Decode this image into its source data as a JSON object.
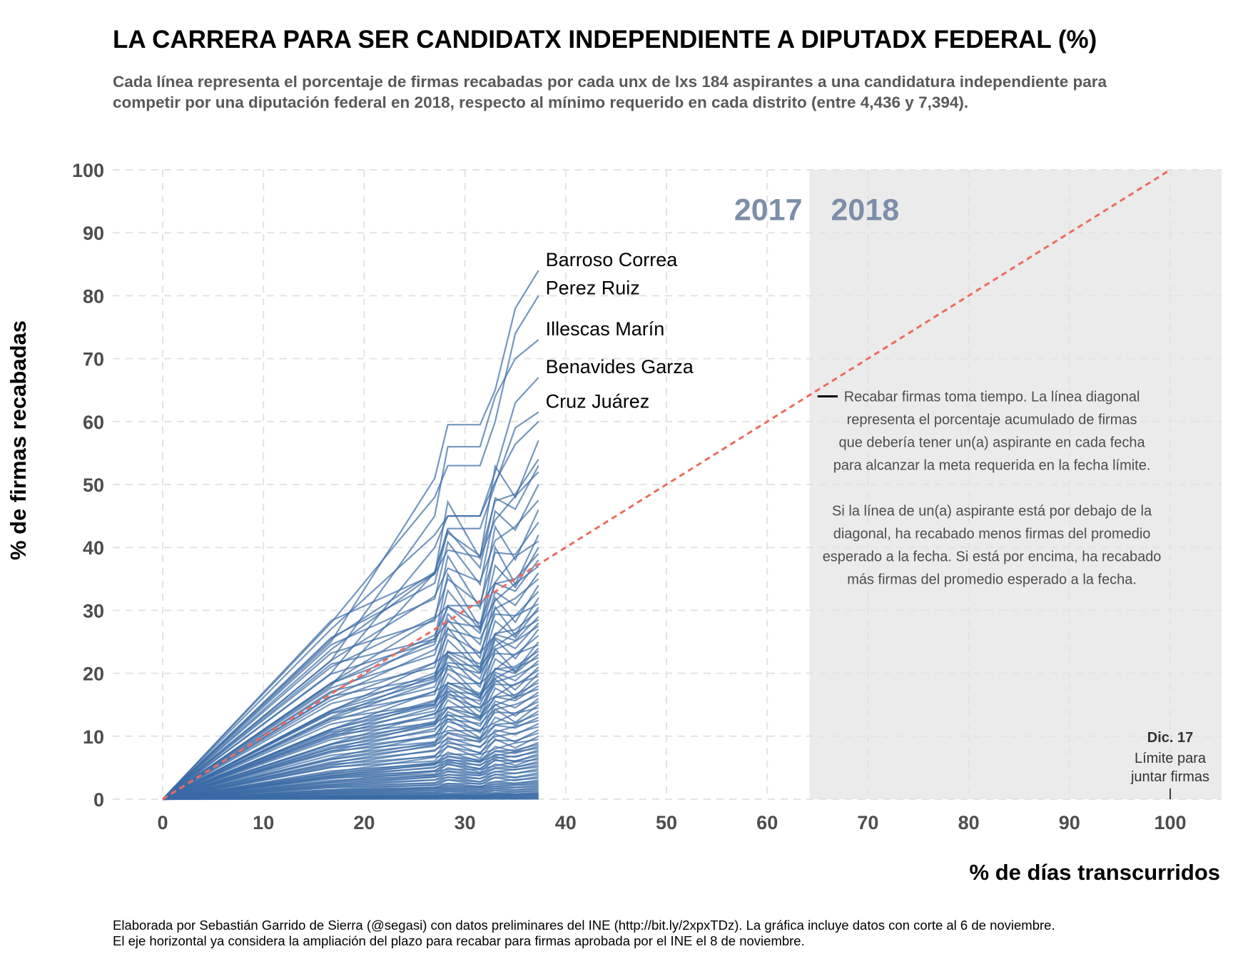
{
  "header": {
    "title": "LA CARRERA PARA SER CANDIDATX INDEPENDIENTE A DIPUTADX FEDERAL (%)",
    "subtitle": "Cada línea representa el porcentaje de firmas recabadas por cada unx de lxs 184 aspirantes a una candidatura independiente para competir por una diputación federal en 2018, respecto al mínimo requerido en cada distrito (entre 4,436 y 7,394)."
  },
  "caption": {
    "line1": "Elaborada por Sebastián Garrido de Sierra (@segasi) con datos preliminares del INE (http://bit.ly/2xpxTDz). La gráfica incluye datos con corte al 6 de noviembre.",
    "line2": "El eje horizontal ya considera la ampliación del plazo para recabar para firmas aprobada por el INE el 8 de noviembre."
  },
  "chart_data": {
    "type": "line",
    "xlabel": "% de días transcurridos",
    "ylabel": "% de firmas recabadas",
    "xlim": [
      0,
      100
    ],
    "ylim": [
      0,
      100
    ],
    "x_ticks": [
      0,
      10,
      20,
      30,
      40,
      50,
      60,
      70,
      80,
      90,
      100
    ],
    "y_ticks": [
      0,
      10,
      20,
      30,
      40,
      50,
      60,
      70,
      80,
      90,
      100
    ],
    "grid": "dashed",
    "year_boundary_x": 64.2,
    "shaded_region_x": [
      64.2,
      100
    ],
    "year_labels": [
      "2017",
      "2018"
    ],
    "colors": {
      "lines": "#3b6ba5",
      "diagonal": "#ef6a5f",
      "shade": "#ebebeb",
      "year_label": "#7d8ea8"
    },
    "reference_line": {
      "x": [
        0,
        100
      ],
      "y": [
        0,
        100
      ],
      "style": "dashed"
    },
    "deadline": {
      "x": 100,
      "label_bold": "Dic. 17",
      "label_lines": [
        "Límite para",
        "juntar firmas"
      ]
    },
    "note": {
      "paragraph1": [
        "Recabar firmas toma tiempo. La línea diagonal",
        "representa el porcentaje acumulado de firmas",
        "que debería tener un(a) aspirante en cada fecha",
        "para alcanzar la meta requerida en la fecha límite."
      ],
      "paragraph2": [
        "Si la línea de un(a) aspirante está por debajo de la",
        "diagonal, ha recabado menos firmas del promedio",
        "esperado a la fecha. Si está por encima, ha recabado",
        "más firmas del promedio esperado a la fecha."
      ]
    },
    "x_points": [
      0,
      16.7,
      27.0,
      28.3,
      31.5,
      33.0,
      35.0,
      37.3
    ],
    "labeled_series": [
      {
        "name": "Barroso Correa",
        "values": [
          0,
          25,
          51,
          59.5,
          59.5,
          65,
          78,
          84
        ]
      },
      {
        "name": "Perez Ruiz",
        "values": [
          0,
          28,
          48,
          53,
          53,
          60,
          74,
          80
        ]
      },
      {
        "name": "Illescas Marín",
        "values": [
          0,
          22,
          45,
          56,
          56,
          64,
          70,
          73
        ]
      },
      {
        "name": "Benavides Garza",
        "values": [
          0,
          20,
          40,
          45,
          45,
          52,
          63,
          67
        ]
      },
      {
        "name": "Cruz Juárez",
        "values": [
          0,
          18,
          36,
          43,
          43,
          50,
          59,
          61.5
        ]
      }
    ],
    "series_count": 184,
    "unlabeled_series_final_values": [
      60,
      57,
      54,
      53,
      52,
      50,
      47.5,
      46,
      44,
      42,
      41,
      40,
      39,
      38,
      37,
      36,
      35,
      34,
      33,
      32,
      31,
      30.5,
      30,
      29,
      28.5,
      28,
      27.5,
      27,
      26,
      25,
      24.5,
      24,
      23.5,
      23,
      22.5,
      22,
      21.5,
      21,
      20.5,
      20,
      19.5,
      19,
      18.5,
      18,
      17.5,
      17,
      16.5,
      16,
      15.5,
      15,
      14.5,
      14,
      13.5,
      13,
      12.5,
      12,
      11.5,
      11,
      10.5,
      10,
      9.5,
      9,
      8.7,
      8.4,
      8.1,
      7.8,
      7.5,
      7.2,
      6.9,
      6.6,
      6.3,
      6.0,
      5.7,
      5.4,
      5.1,
      4.8,
      4.5,
      4.2,
      3.9,
      3.6,
      3.3,
      3.0,
      2.8,
      2.6,
      2.4,
      2.2,
      2.0,
      1.8,
      1.6,
      1.4,
      1.2,
      1.0,
      0.9,
      0.8,
      0.7,
      0.6,
      0.5,
      0.4,
      0.3,
      0.2,
      0.1,
      0.05
    ]
  }
}
